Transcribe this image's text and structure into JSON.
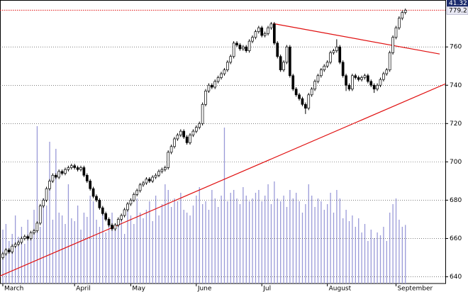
{
  "chart_data": {
    "type": "candlestick",
    "categories": [
      "March",
      null,
      null,
      null,
      null,
      null,
      null,
      null,
      null,
      null,
      null,
      null,
      null,
      null,
      null,
      null,
      null,
      null,
      null,
      null,
      null,
      null,
      null,
      "April",
      null,
      null,
      null,
      null,
      null,
      null,
      null,
      null,
      null,
      null,
      null,
      null,
      null,
      null,
      null,
      null,
      null,
      "May",
      null,
      null,
      null,
      null,
      null,
      null,
      null,
      null,
      null,
      null,
      null,
      null,
      null,
      null,
      null,
      null,
      null,
      null,
      null,
      null,
      "June",
      null,
      null,
      null,
      null,
      null,
      null,
      null,
      null,
      null,
      null,
      null,
      null,
      null,
      null,
      null,
      null,
      null,
      null,
      null,
      null,
      "Jul",
      null,
      null,
      null,
      null,
      null,
      null,
      null,
      null,
      null,
      null,
      null,
      null,
      null,
      null,
      null,
      null,
      null,
      null,
      null,
      null,
      "August",
      null,
      null,
      null,
      null,
      null,
      null,
      null,
      null,
      null,
      null,
      null,
      null,
      null,
      null,
      null,
      null,
      null,
      null,
      null,
      null,
      null,
      "September",
      null,
      null,
      null
    ],
    "open": [
      650,
      652,
      654,
      653,
      656,
      657,
      658,
      660,
      661,
      660,
      663,
      664,
      668,
      677,
      680,
      686,
      690,
      693,
      692,
      695,
      694,
      696,
      697,
      698,
      697,
      696,
      697,
      693,
      690,
      686,
      682,
      680,
      676,
      673,
      670,
      667,
      665,
      667,
      670,
      672,
      675,
      678,
      680,
      683,
      685,
      688,
      689,
      691,
      690,
      692,
      693,
      695,
      696,
      697,
      705,
      708,
      712,
      714,
      716,
      713,
      710,
      714,
      716,
      718,
      720,
      730,
      737,
      740,
      739,
      742,
      744,
      746,
      748,
      752,
      755,
      762,
      761,
      759,
      760,
      758,
      763,
      765,
      768,
      770,
      766,
      767,
      770,
      772,
      762,
      755,
      748,
      752,
      760,
      745,
      738,
      735,
      733,
      730,
      728,
      735,
      738,
      742,
      745,
      748,
      750,
      752,
      757,
      758,
      760,
      752,
      745,
      740,
      738,
      745,
      744,
      743,
      744,
      745,
      742,
      740,
      738,
      740,
      743,
      746,
      748,
      757,
      765,
      770,
      775,
      778
    ],
    "high": [
      653,
      655,
      655,
      657,
      658,
      659,
      661,
      662,
      662,
      664,
      665,
      669,
      678,
      681,
      687,
      691,
      694,
      694,
      696,
      696,
      697,
      698,
      699,
      699,
      698,
      698,
      698,
      694,
      691,
      687,
      683,
      681,
      677,
      674,
      671,
      668,
      668,
      671,
      673,
      676,
      679,
      681,
      684,
      686,
      689,
      690,
      692,
      692,
      693,
      694,
      696,
      697,
      698,
      706,
      709,
      713,
      715,
      717,
      717,
      714,
      715,
      717,
      719,
      721,
      731,
      738,
      741,
      741,
      743,
      745,
      747,
      749,
      753,
      756,
      763,
      763,
      762,
      761,
      761,
      764,
      766,
      769,
      771,
      771,
      768,
      771,
      773,
      773,
      763,
      756,
      753,
      761,
      761,
      746,
      739,
      736,
      734,
      731,
      736,
      739,
      743,
      746,
      749,
      751,
      753,
      758,
      759,
      764,
      761,
      753,
      746,
      741,
      746,
      746,
      745,
      745,
      746,
      746,
      743,
      741,
      741,
      744,
      747,
      749,
      758,
      766,
      771,
      776,
      779,
      780
    ],
    "low": [
      649,
      651,
      652,
      652,
      655,
      656,
      657,
      659,
      659,
      659,
      662,
      663,
      667,
      676,
      679,
      685,
      689,
      691,
      691,
      693,
      693,
      695,
      696,
      696,
      695,
      695,
      692,
      689,
      685,
      681,
      679,
      675,
      672,
      669,
      666,
      664,
      664,
      666,
      669,
      671,
      674,
      677,
      679,
      682,
      684,
      687,
      688,
      689,
      689,
      691,
      692,
      694,
      695,
      696,
      704,
      707,
      711,
      713,
      712,
      709,
      709,
      713,
      715,
      717,
      719,
      729,
      736,
      738,
      738,
      741,
      743,
      745,
      747,
      751,
      754,
      760,
      758,
      758,
      757,
      757,
      762,
      764,
      767,
      765,
      765,
      766,
      769,
      761,
      754,
      747,
      747,
      751,
      744,
      737,
      734,
      732,
      729,
      725,
      727,
      734,
      737,
      741,
      744,
      747,
      749,
      751,
      756,
      757,
      751,
      744,
      737,
      737,
      737,
      743,
      742,
      742,
      743,
      741,
      739,
      736,
      737,
      739,
      742,
      745,
      747,
      756,
      764,
      769,
      774,
      777
    ],
    "close": [
      652,
      654,
      653,
      656,
      657,
      658,
      660,
      661,
      660,
      663,
      664,
      668,
      677,
      680,
      686,
      690,
      693,
      692,
      695,
      694,
      696,
      697,
      698,
      697,
      696,
      697,
      693,
      690,
      686,
      682,
      680,
      676,
      673,
      670,
      667,
      665,
      667,
      670,
      672,
      675,
      678,
      680,
      683,
      685,
      688,
      689,
      691,
      690,
      692,
      693,
      695,
      696,
      697,
      705,
      708,
      712,
      714,
      716,
      713,
      710,
      714,
      716,
      718,
      720,
      730,
      737,
      740,
      739,
      742,
      744,
      746,
      748,
      752,
      755,
      762,
      761,
      759,
      760,
      758,
      763,
      765,
      768,
      770,
      766,
      767,
      770,
      772,
      762,
      755,
      748,
      752,
      760,
      745,
      738,
      735,
      733,
      730,
      728,
      735,
      738,
      742,
      745,
      748,
      750,
      752,
      757,
      758,
      760,
      752,
      745,
      740,
      738,
      745,
      744,
      743,
      744,
      745,
      742,
      740,
      738,
      740,
      743,
      746,
      748,
      757,
      765,
      770,
      775,
      778,
      779.2
    ],
    "volume": [
      38,
      42,
      30,
      35,
      48,
      33,
      40,
      28,
      45,
      36,
      52,
      111,
      40,
      60,
      55,
      100,
      45,
      95,
      50,
      48,
      42,
      70,
      46,
      44,
      55,
      38,
      50,
      47,
      62,
      58,
      45,
      40,
      52,
      36,
      44,
      50,
      38,
      41,
      47,
      35,
      55,
      48,
      42,
      60,
      50,
      46,
      52,
      58,
      44,
      62,
      48,
      56,
      70,
      66,
      54,
      60,
      58,
      64,
      52,
      50,
      48,
      55,
      62,
      68,
      56,
      58,
      52,
      66,
      60,
      54,
      62,
      110,
      58,
      64,
      66,
      60,
      56,
      68,
      62,
      58,
      60,
      64,
      66,
      58,
      62,
      70,
      56,
      72,
      60,
      58,
      62,
      54,
      66,
      60,
      64,
      58,
      50,
      56,
      70,
      62,
      54,
      60,
      58,
      52,
      56,
      64,
      50,
      66,
      60,
      46,
      52,
      44,
      48,
      40,
      46,
      36,
      42,
      30,
      38,
      32,
      36,
      34,
      40,
      30,
      50,
      56,
      60,
      45,
      40,
      41.32
    ],
    "up_color": "#ffffff",
    "down_color": "#000000",
    "volume_color": "#9a9ad8",
    "xlim": [
      -0.9,
      141.8
    ],
    "ylim": [
      636.5,
      784.5
    ],
    "y2lim": [
      0,
      200
    ],
    "yticks": [
      640,
      660,
      680,
      700,
      720,
      740,
      760
    ],
    "grid": true,
    "trendlines": [
      {
        "x": [
          -0.9,
          141.8
        ],
        "y": [
          640.4,
          740.7
        ],
        "color": "#e01010"
      },
      {
        "x": [
          86.6,
          140
        ],
        "y": [
          772.2,
          756.3
        ],
        "color": "#e01010"
      }
    ],
    "last_price_color": "#e01010"
  }
}
